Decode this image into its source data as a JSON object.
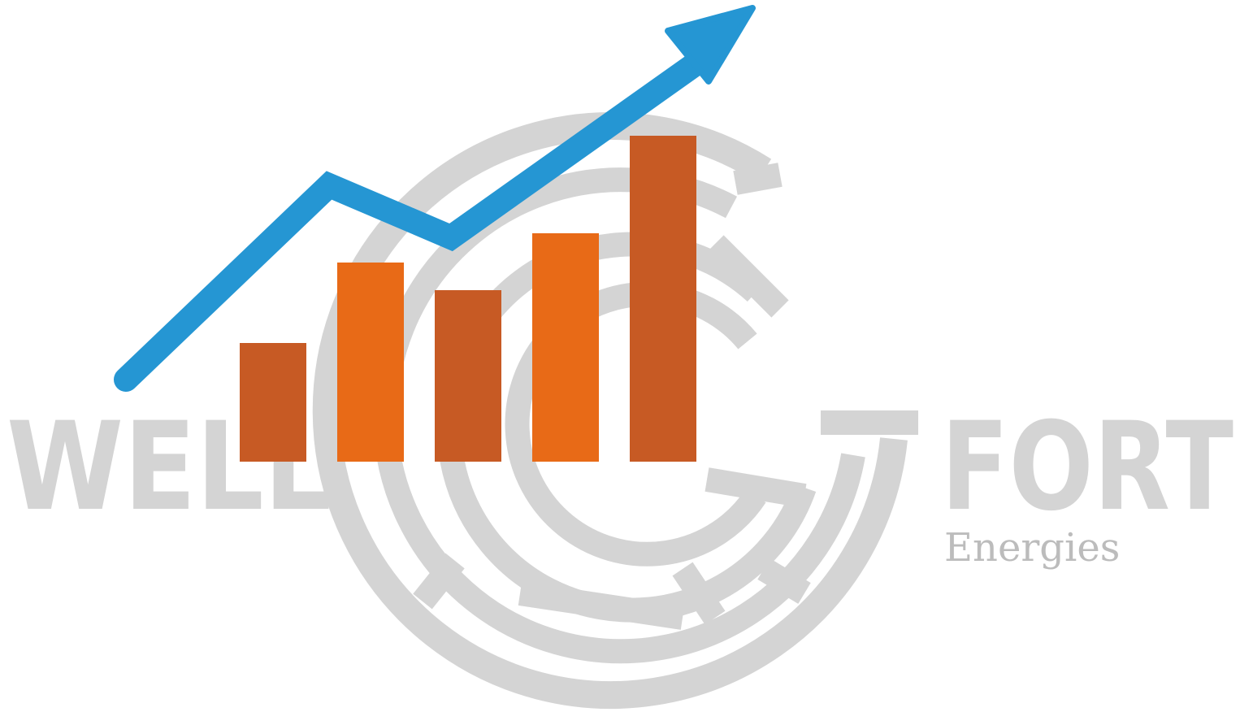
{
  "logo": {
    "word_left": "WELL",
    "word_right": "FORT",
    "tagline": "Energies"
  },
  "graphic": {
    "bar_count": 5,
    "relative_bar_heights": [
      0.36,
      0.61,
      0.53,
      0.7,
      1.0
    ],
    "trend_arrow": "rising-trend-arrow"
  },
  "colors": {
    "watermark_gray": "#d4d4d4",
    "tagline_gray": "#bcbcbc",
    "bar_dark_orange": "#c75a24",
    "bar_bright_orange": "#e86a17",
    "arrow_blue": "#2596d3",
    "background": "#ffffff"
  }
}
